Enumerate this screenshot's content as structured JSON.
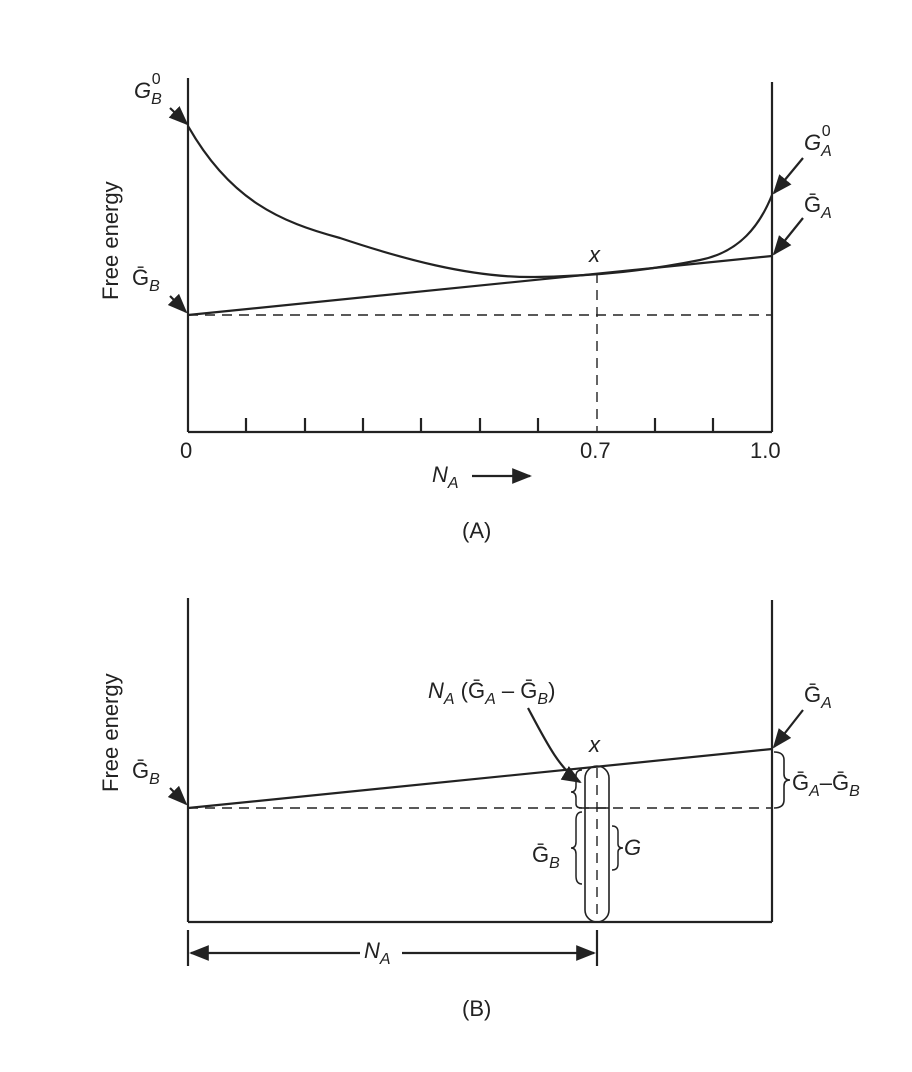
{
  "panel_a": {
    "ylabel": "Free energy",
    "xlabel": "N",
    "xlabel_sub": "A",
    "tick_0": "0",
    "tick_07": "0.7",
    "tick_10": "1.0",
    "point_x": "x",
    "caption": "(A)",
    "gb0": {
      "base": "G",
      "sub": "B",
      "sup": "0"
    },
    "ga0": {
      "base": "G",
      "sub": "A",
      "sup": "0"
    },
    "gabar": {
      "base": "Ḡ",
      "sub": "A"
    },
    "gbbar": {
      "base": "Ḡ",
      "sub": "B"
    }
  },
  "panel_b": {
    "ylabel": "Free energy",
    "point_x": "x",
    "caption": "(B)",
    "na_expr": {
      "n": "N",
      "n_sub": "A",
      "open": " (",
      "g1": "Ḡ",
      "g1_sub": "A",
      "minus": " – ",
      "g2": "Ḡ",
      "g2_sub": "B",
      "close": ")"
    },
    "gabar": {
      "base": "Ḡ",
      "sub": "A"
    },
    "gbbar": {
      "base": "Ḡ",
      "sub": "B"
    },
    "gbbar_inner": {
      "base": "Ḡ",
      "sub": "B"
    },
    "g_label": "G",
    "diff_label": {
      "g1": "Ḡ",
      "g1_sub": "A",
      "minus": "–",
      "g2": "Ḡ",
      "g2_sub": "B"
    },
    "na_dim": {
      "base": "N",
      "sub": "A"
    }
  }
}
